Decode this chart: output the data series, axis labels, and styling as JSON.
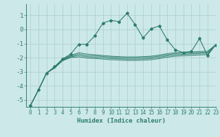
{
  "xlabel": "Humidex (Indice chaleur)",
  "xlim": [
    -0.5,
    23
  ],
  "ylim": [
    -5.5,
    1.8
  ],
  "yticks": [
    -5,
    -4,
    -3,
    -2,
    -1,
    0,
    1
  ],
  "xticks": [
    0,
    1,
    2,
    3,
    4,
    5,
    6,
    7,
    8,
    9,
    10,
    11,
    12,
    13,
    14,
    15,
    16,
    17,
    18,
    19,
    20,
    21,
    22,
    23
  ],
  "background_color": "#cce8e8",
  "grid_color": "#aacccc",
  "line_color": "#2e7d6e",
  "main_line_x": [
    0,
    1,
    2,
    3,
    4,
    5,
    6,
    7,
    8,
    9,
    10,
    11,
    12,
    13,
    14,
    15,
    16,
    17,
    18,
    19,
    20,
    21,
    22,
    23
  ],
  "main_line_y": [
    -5.4,
    -4.3,
    -3.1,
    -2.65,
    -2.1,
    -1.75,
    -1.05,
    -1.05,
    -0.45,
    0.45,
    0.65,
    0.55,
    1.15,
    0.35,
    -0.6,
    0.05,
    0.25,
    -0.75,
    -1.45,
    -1.65,
    -1.55,
    -0.65,
    -1.85,
    -1.1
  ],
  "band_lines": [
    [
      -5.4,
      -4.3,
      -3.1,
      -2.65,
      -2.1,
      -1.85,
      -1.65,
      -1.75,
      -1.8,
      -1.85,
      -1.9,
      -1.93,
      -1.95,
      -1.95,
      -1.93,
      -1.9,
      -1.82,
      -1.72,
      -1.65,
      -1.62,
      -1.6,
      -1.57,
      -1.55,
      -1.1
    ],
    [
      -5.4,
      -4.3,
      -3.1,
      -2.7,
      -2.15,
      -1.9,
      -1.75,
      -1.85,
      -1.88,
      -1.92,
      -1.97,
      -2.0,
      -2.03,
      -2.03,
      -2.0,
      -1.97,
      -1.9,
      -1.8,
      -1.73,
      -1.7,
      -1.67,
      -1.64,
      -1.62,
      -1.1
    ],
    [
      -5.4,
      -4.3,
      -3.1,
      -2.7,
      -2.18,
      -1.95,
      -1.85,
      -1.94,
      -1.97,
      -2.01,
      -2.06,
      -2.08,
      -2.11,
      -2.11,
      -2.09,
      -2.06,
      -1.98,
      -1.88,
      -1.81,
      -1.78,
      -1.75,
      -1.72,
      -1.7,
      -1.1
    ],
    [
      -5.4,
      -4.3,
      -3.1,
      -2.75,
      -2.22,
      -2.0,
      -1.95,
      -2.03,
      -2.06,
      -2.1,
      -2.15,
      -2.17,
      -2.2,
      -2.2,
      -2.18,
      -2.15,
      -2.07,
      -1.97,
      -1.9,
      -1.87,
      -1.84,
      -1.81,
      -1.79,
      -1.1
    ]
  ]
}
